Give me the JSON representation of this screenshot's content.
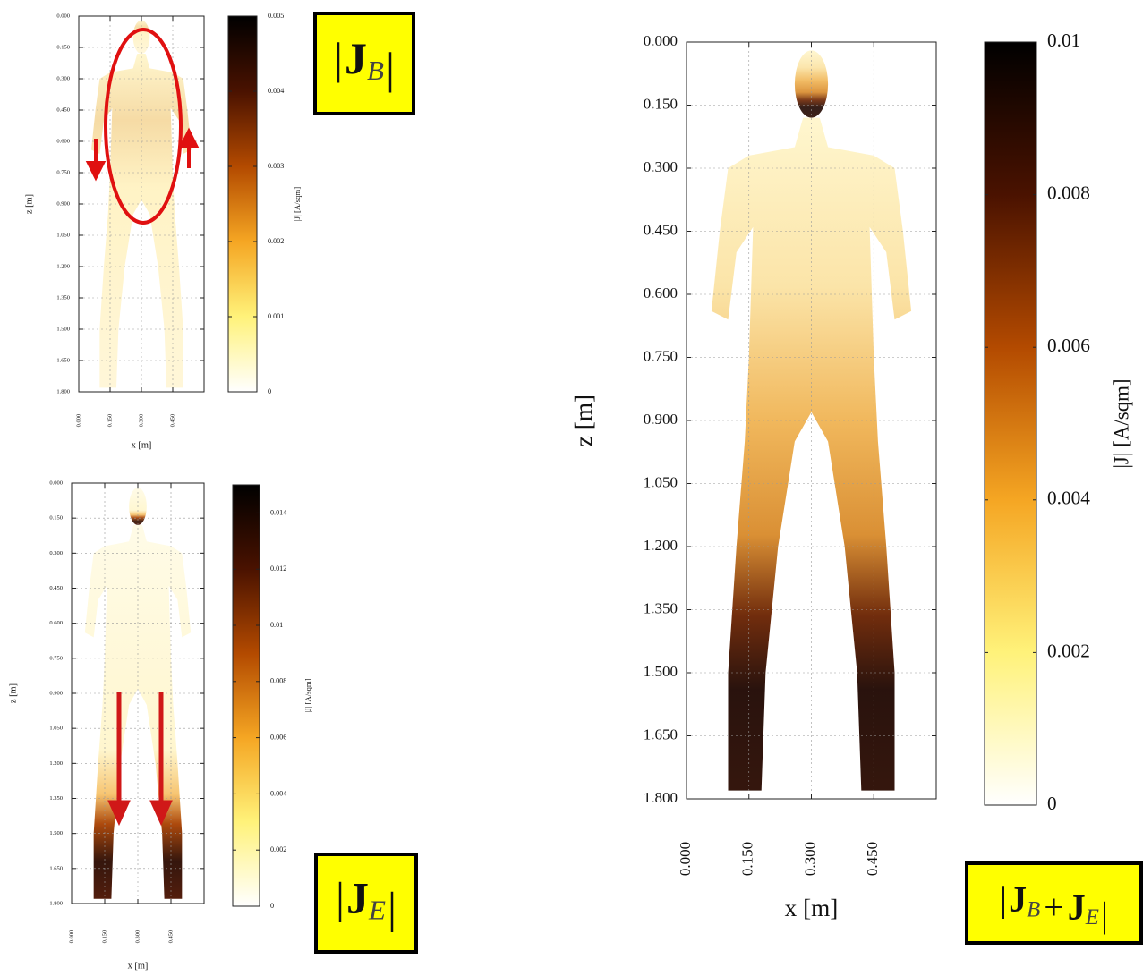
{
  "chart_data": [
    {
      "type": "heatmap",
      "xlabel": "x [m]",
      "ylabel": "z [m]",
      "colorbar_label": "|J| [A/sqm]",
      "xlim": [
        0,
        0.6
      ],
      "ylim": [
        0,
        1.8
      ],
      "y_inverted": true,
      "grid": true,
      "xticks": [
        {
          "value": 0,
          "label": "0.000"
        },
        {
          "value": 0.15,
          "label": "0.150"
        },
        {
          "value": 0.3,
          "label": "0.300"
        },
        {
          "value": 0.45,
          "label": "0.450"
        }
      ],
      "yticks": [
        {
          "value": 0,
          "label": "0.000"
        },
        {
          "value": 0.15,
          "label": "0.150"
        },
        {
          "value": 0.3,
          "label": "0.300"
        },
        {
          "value": 0.45,
          "label": "0.450"
        },
        {
          "value": 0.6,
          "label": "0.600"
        },
        {
          "value": 0.75,
          "label": "0.750"
        },
        {
          "value": 0.9,
          "label": "0.900"
        },
        {
          "value": 1.05,
          "label": "1.050"
        },
        {
          "value": 1.2,
          "label": "1.200"
        },
        {
          "value": 1.35,
          "label": "1.350"
        },
        {
          "value": 1.5,
          "label": "1.500"
        },
        {
          "value": 1.65,
          "label": "1.650"
        },
        {
          "value": 1.8,
          "label": "1.800"
        }
      ],
      "clim": [
        0,
        0.005
      ],
      "cticks": [
        0,
        0.001,
        0.002,
        0.003,
        0.004,
        0.005
      ],
      "colormap": [
        "#ffffff",
        "#fff27a",
        "#f5a623",
        "#b34a00",
        "#4a1200",
        "#000000"
      ],
      "annotation": {
        "open": "|",
        "close": "|",
        "terms": [
          {
            "symbol": "J",
            "subscript": "B"
          }
        ]
      }
    },
    {
      "type": "heatmap",
      "xlabel": "x [m]",
      "ylabel": "z [m]",
      "colorbar_label": "|J| [A/sqm]",
      "xlim": [
        0,
        0.6
      ],
      "ylim": [
        0,
        1.8
      ],
      "y_inverted": true,
      "grid": true,
      "xticks": [
        {
          "value": 0,
          "label": "0.000"
        },
        {
          "value": 0.15,
          "label": "0.150"
        },
        {
          "value": 0.3,
          "label": "0.300"
        },
        {
          "value": 0.45,
          "label": "0.450"
        }
      ],
      "yticks": [
        {
          "value": 0,
          "label": "0.000"
        },
        {
          "value": 0.15,
          "label": "0.150"
        },
        {
          "value": 0.3,
          "label": "0.300"
        },
        {
          "value": 0.45,
          "label": "0.450"
        },
        {
          "value": 0.6,
          "label": "0.600"
        },
        {
          "value": 0.75,
          "label": "0.750"
        },
        {
          "value": 0.9,
          "label": "0.900"
        },
        {
          "value": 1.05,
          "label": "1.050"
        },
        {
          "value": 1.2,
          "label": "1.200"
        },
        {
          "value": 1.35,
          "label": "1.350"
        },
        {
          "value": 1.5,
          "label": "1.500"
        },
        {
          "value": 1.65,
          "label": "1.650"
        },
        {
          "value": 1.8,
          "label": "1.800"
        }
      ],
      "clim": [
        0,
        0.015
      ],
      "cticks": [
        0,
        0.002,
        0.004,
        0.006,
        0.008,
        0.01,
        0.012,
        0.014
      ],
      "colormap": [
        "#ffffff",
        "#fff27a",
        "#f5a623",
        "#b34a00",
        "#4a1200",
        "#000000"
      ],
      "annotation": {
        "open": "|",
        "close": "|",
        "terms": [
          {
            "symbol": "J",
            "subscript": "E"
          }
        ]
      }
    },
    {
      "type": "heatmap",
      "xlabel": "x [m]",
      "ylabel": "z [m]",
      "colorbar_label": "|J| [A/sqm]",
      "xlim": [
        0,
        0.6
      ],
      "ylim": [
        0,
        1.8
      ],
      "y_inverted": true,
      "grid": true,
      "xticks": [
        {
          "value": 0,
          "label": "0.000"
        },
        {
          "value": 0.15,
          "label": "0.150"
        },
        {
          "value": 0.3,
          "label": "0.300"
        },
        {
          "value": 0.45,
          "label": "0.450"
        }
      ],
      "yticks": [
        {
          "value": 0,
          "label": "0.000"
        },
        {
          "value": 0.15,
          "label": "0.150"
        },
        {
          "value": 0.3,
          "label": "0.300"
        },
        {
          "value": 0.45,
          "label": "0.450"
        },
        {
          "value": 0.6,
          "label": "0.600"
        },
        {
          "value": 0.75,
          "label": "0.750"
        },
        {
          "value": 0.9,
          "label": "0.900"
        },
        {
          "value": 1.05,
          "label": "1.050"
        },
        {
          "value": 1.2,
          "label": "1.200"
        },
        {
          "value": 1.35,
          "label": "1.350"
        },
        {
          "value": 1.5,
          "label": "1.500"
        },
        {
          "value": 1.65,
          "label": "1.650"
        },
        {
          "value": 1.8,
          "label": "1.800"
        }
      ],
      "clim": [
        0,
        0.01
      ],
      "cticks": [
        0,
        0.002,
        0.004,
        0.006,
        0.008,
        0.01
      ],
      "colormap": [
        "#ffffff",
        "#fff27a",
        "#f5a623",
        "#b34a00",
        "#4a1200",
        "#000000"
      ],
      "annotation": {
        "open": "|",
        "close": "|",
        "operator": "+",
        "terms": [
          {
            "symbol": "J",
            "subscript": "B"
          },
          {
            "symbol": "J",
            "subscript": "E"
          }
        ]
      }
    }
  ]
}
